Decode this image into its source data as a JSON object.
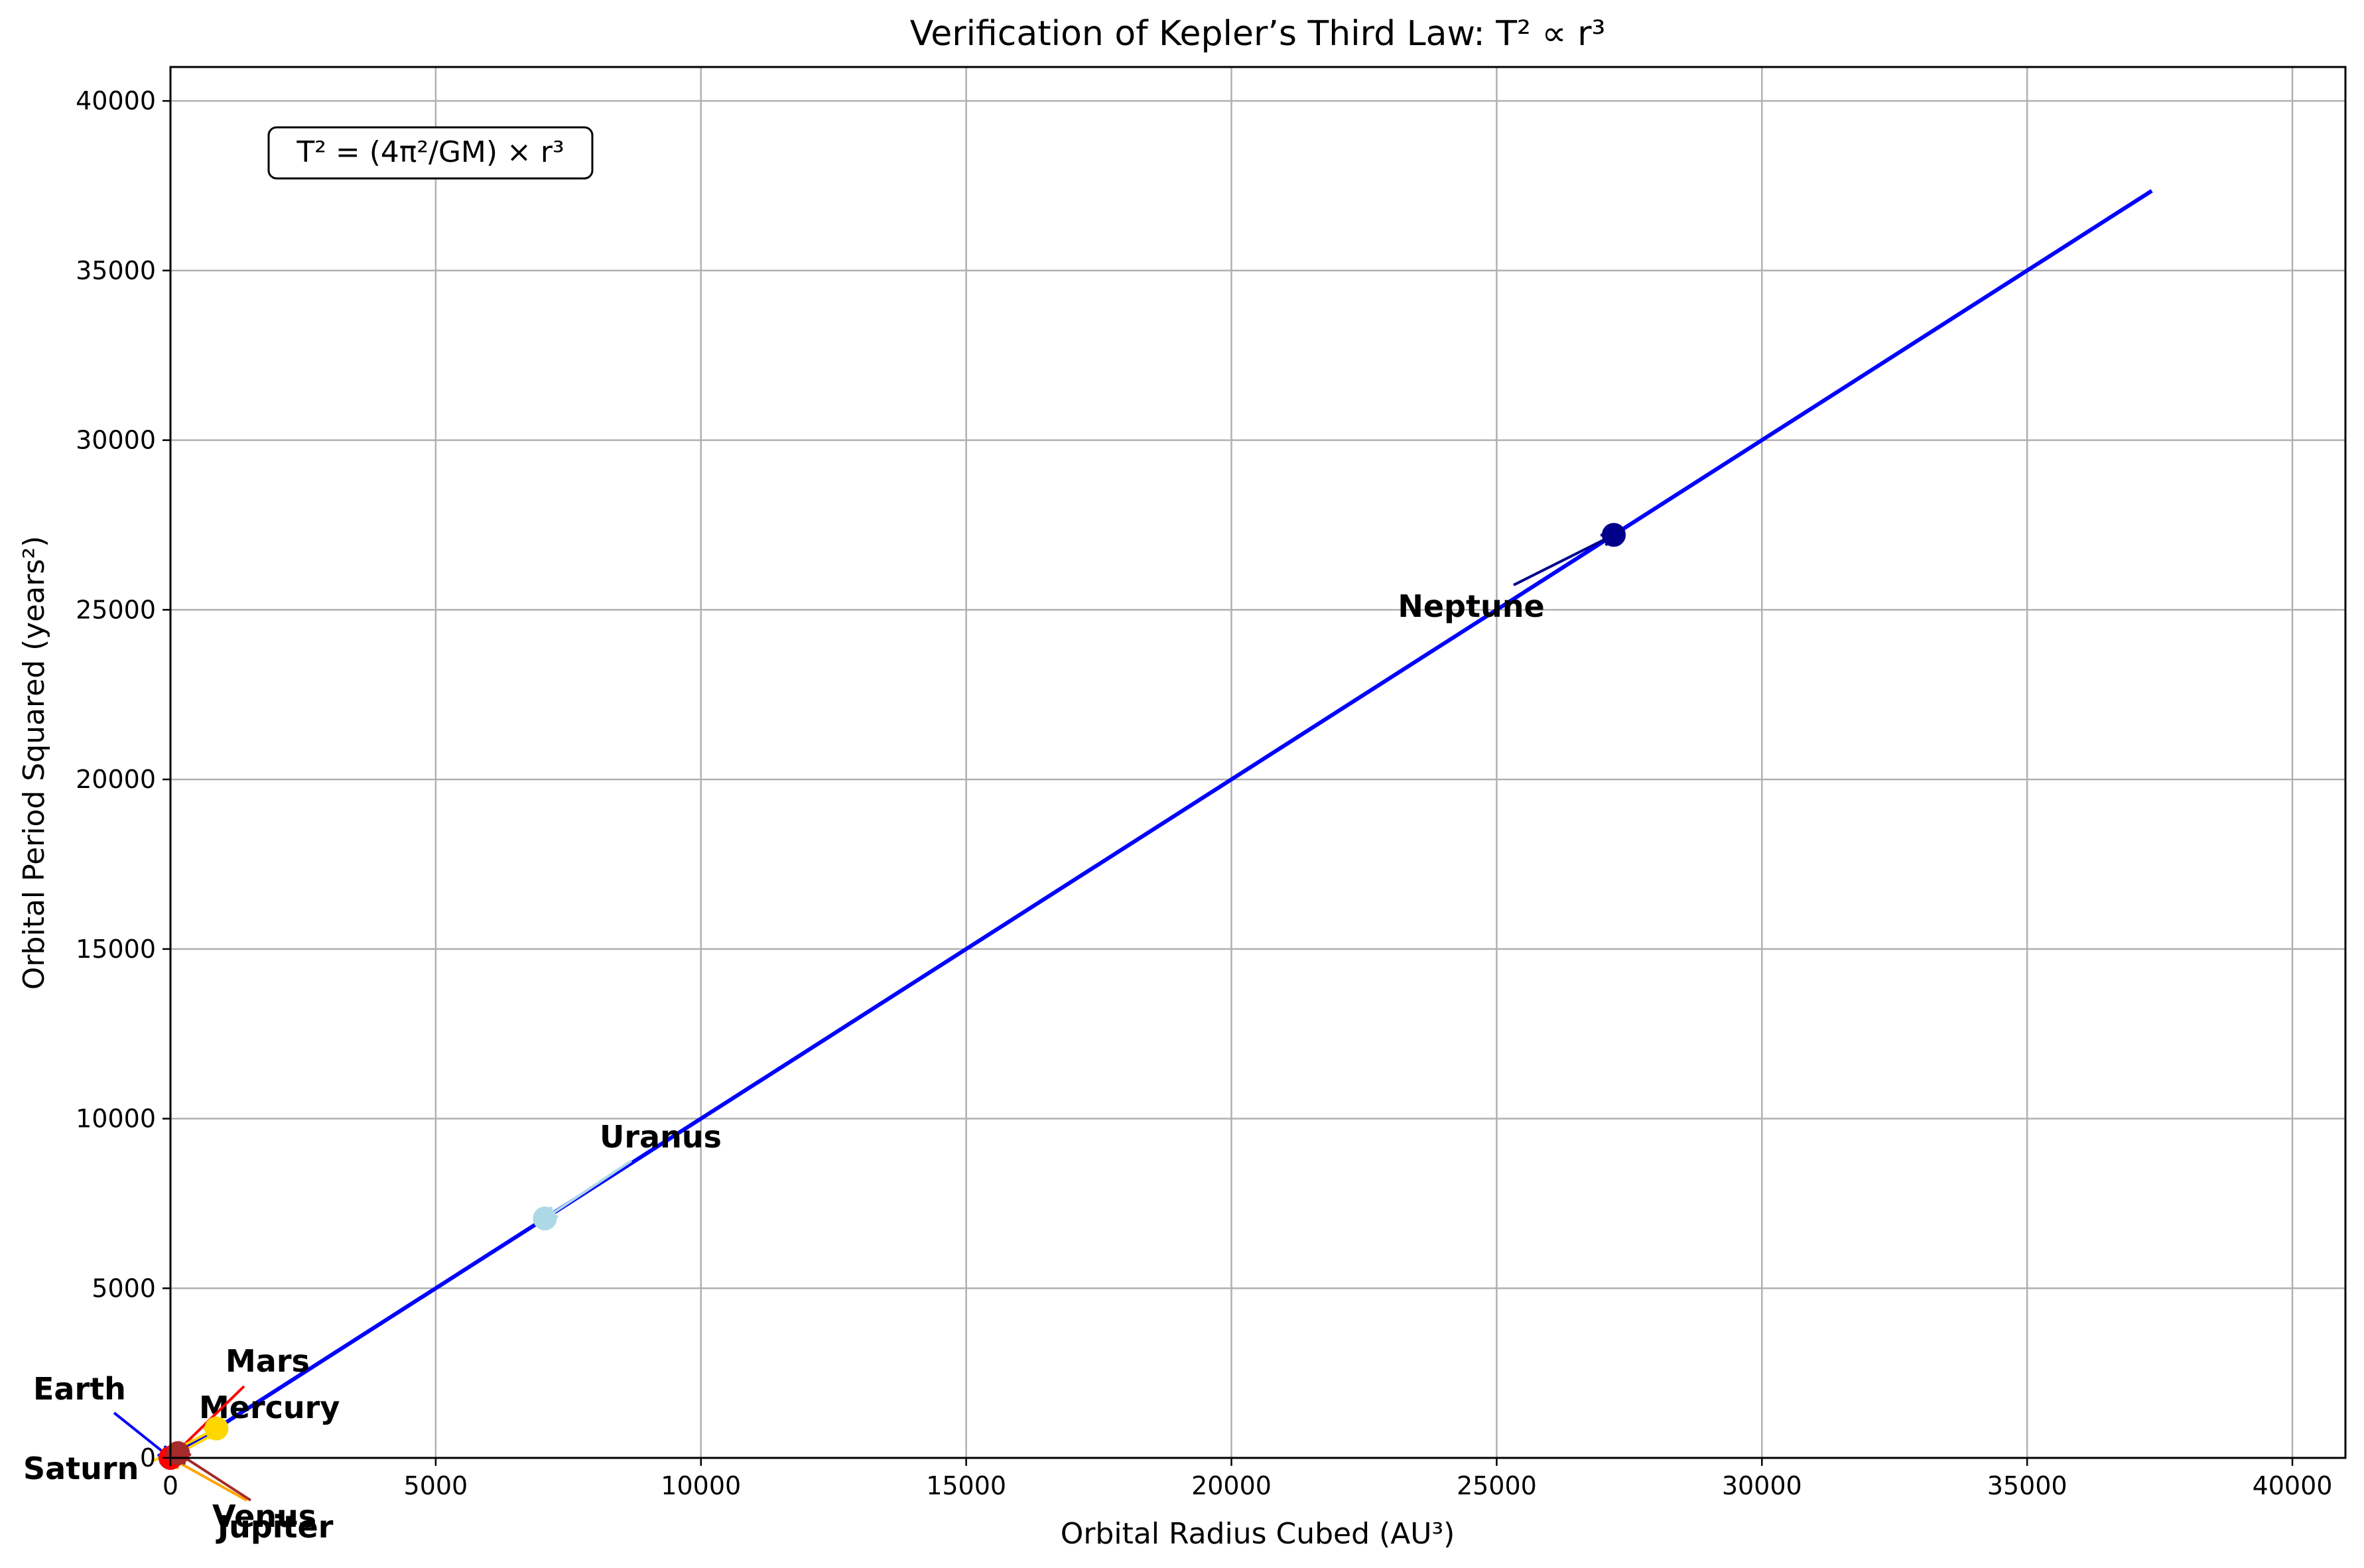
{
  "chart_data": {
    "type": "scatter",
    "title": "Verification of Kepler’s Third Law: T² ∝ r³",
    "xlabel": "Orbital Radius Cubed (AU³)",
    "ylabel": "Orbital Period Squared (years²)",
    "xlim": [
      0,
      41000
    ],
    "ylim": [
      0,
      41000
    ],
    "xticks": [
      0,
      5000,
      10000,
      15000,
      20000,
      25000,
      30000,
      35000,
      40000
    ],
    "yticks": [
      0,
      5000,
      10000,
      15000,
      20000,
      25000,
      30000,
      35000,
      40000
    ],
    "grid": true,
    "formula_box": "T² = (4π²/GM) × r³",
    "fit_line": {
      "x": [
        0,
        37350
      ],
      "y": [
        0,
        37350
      ],
      "color": "#0000ff"
    },
    "points": [
      {
        "name": "Mercury",
        "x": 0.058,
        "y": 0.058,
        "color": "#ffd700"
      },
      {
        "name": "Venus",
        "x": 0.378,
        "y": 0.378,
        "color": "#ffa500"
      },
      {
        "name": "Earth",
        "x": 1,
        "y": 1,
        "color": "#0000ff"
      },
      {
        "name": "Mars",
        "x": 3.54,
        "y": 3.54,
        "color": "#ff0000"
      },
      {
        "name": "Jupiter",
        "x": 140.6,
        "y": 140.6,
        "color": "#a52a2a"
      },
      {
        "name": "Saturn",
        "x": 867.9,
        "y": 867.9,
        "color": "#ffd700"
      },
      {
        "name": "Uranus",
        "x": 7058,
        "y": 7058,
        "color": "#add8e6"
      },
      {
        "name": "Neptune",
        "x": 27208,
        "y": 27208,
        "color": "#00008b"
      }
    ]
  }
}
